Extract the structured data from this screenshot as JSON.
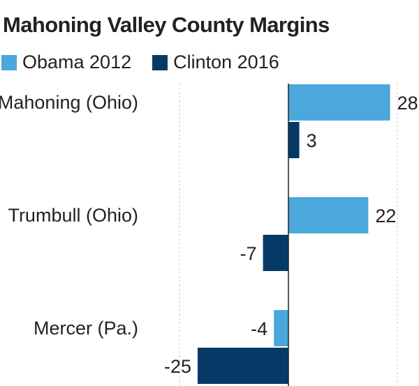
{
  "chart_data": {
    "type": "bar",
    "orientation": "horizontal",
    "title": "Mahoning Valley County Margins",
    "categories": [
      "Mahoning (Ohio)",
      "Trumbull (Ohio)",
      "Mercer (Pa.)"
    ],
    "series": [
      {
        "name": "Obama 2012",
        "values": [
          28,
          22,
          -4
        ],
        "color": "#4aa8dd"
      },
      {
        "name": "Clinton 2016",
        "values": [
          3,
          -7,
          -25
        ],
        "color": "#053a66"
      }
    ],
    "xlim": [
      -30,
      30
    ],
    "gridlines": [
      -30,
      0,
      30
    ],
    "grid": true,
    "legend_position": "top-left"
  }
}
